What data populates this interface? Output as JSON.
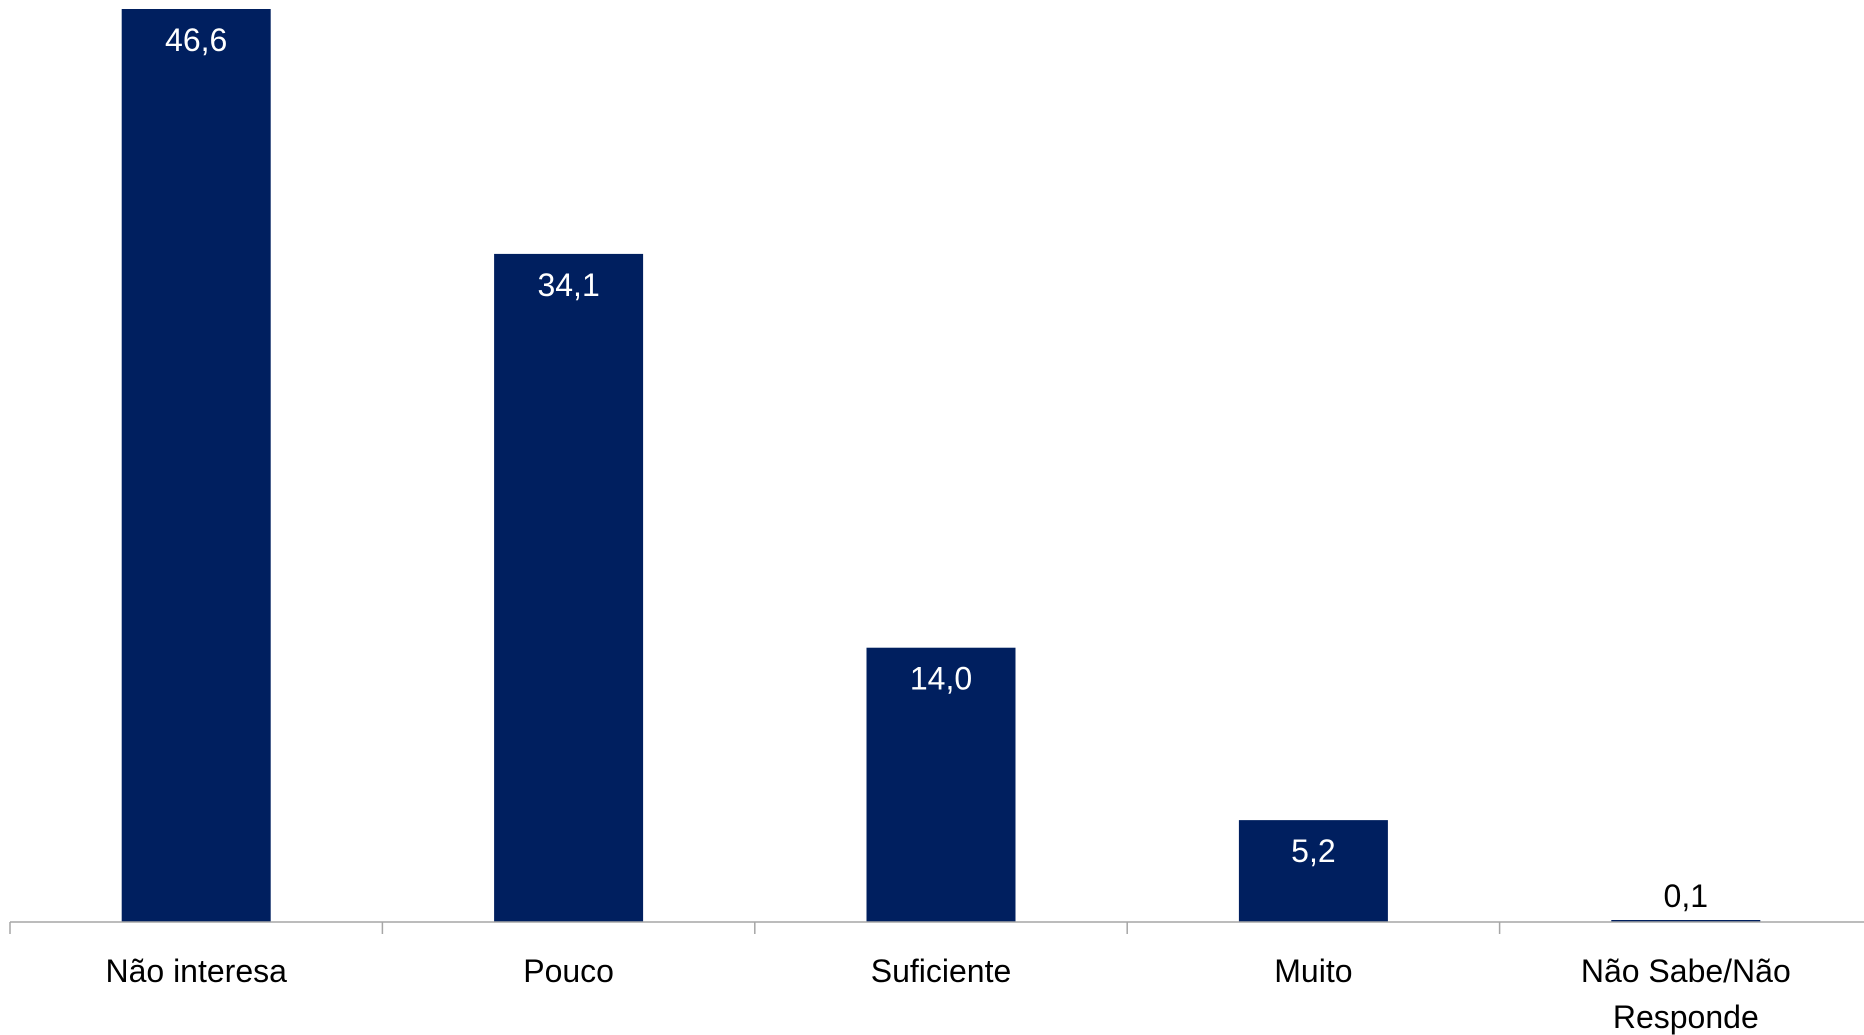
{
  "chart_data": {
    "type": "bar",
    "categories": [
      "Não interesa",
      "Pouco",
      "Suficiente",
      "Muito",
      "Não Sabe/Não Responde"
    ],
    "category_lines": [
      [
        "Não interesa"
      ],
      [
        "Pouco"
      ],
      [
        "Suficiente"
      ],
      [
        "Muito"
      ],
      [
        "Não Sabe/Não",
        "Responde"
      ]
    ],
    "values": [
      46.6,
      34.1,
      14.0,
      5.2,
      0.1
    ],
    "data_labels": [
      "46,6",
      "34,1",
      "14,0",
      "5,2",
      "0,1"
    ],
    "ylim": [
      0,
      46.6
    ],
    "title": "",
    "xlabel": "",
    "ylabel": "",
    "grid": false,
    "legend": "none",
    "colors": {
      "bar": "#001F5F",
      "axis": "#A6A6A6",
      "label_inside": "#FFFFFF",
      "label_outside": "#000000",
      "text": "#000000"
    }
  }
}
